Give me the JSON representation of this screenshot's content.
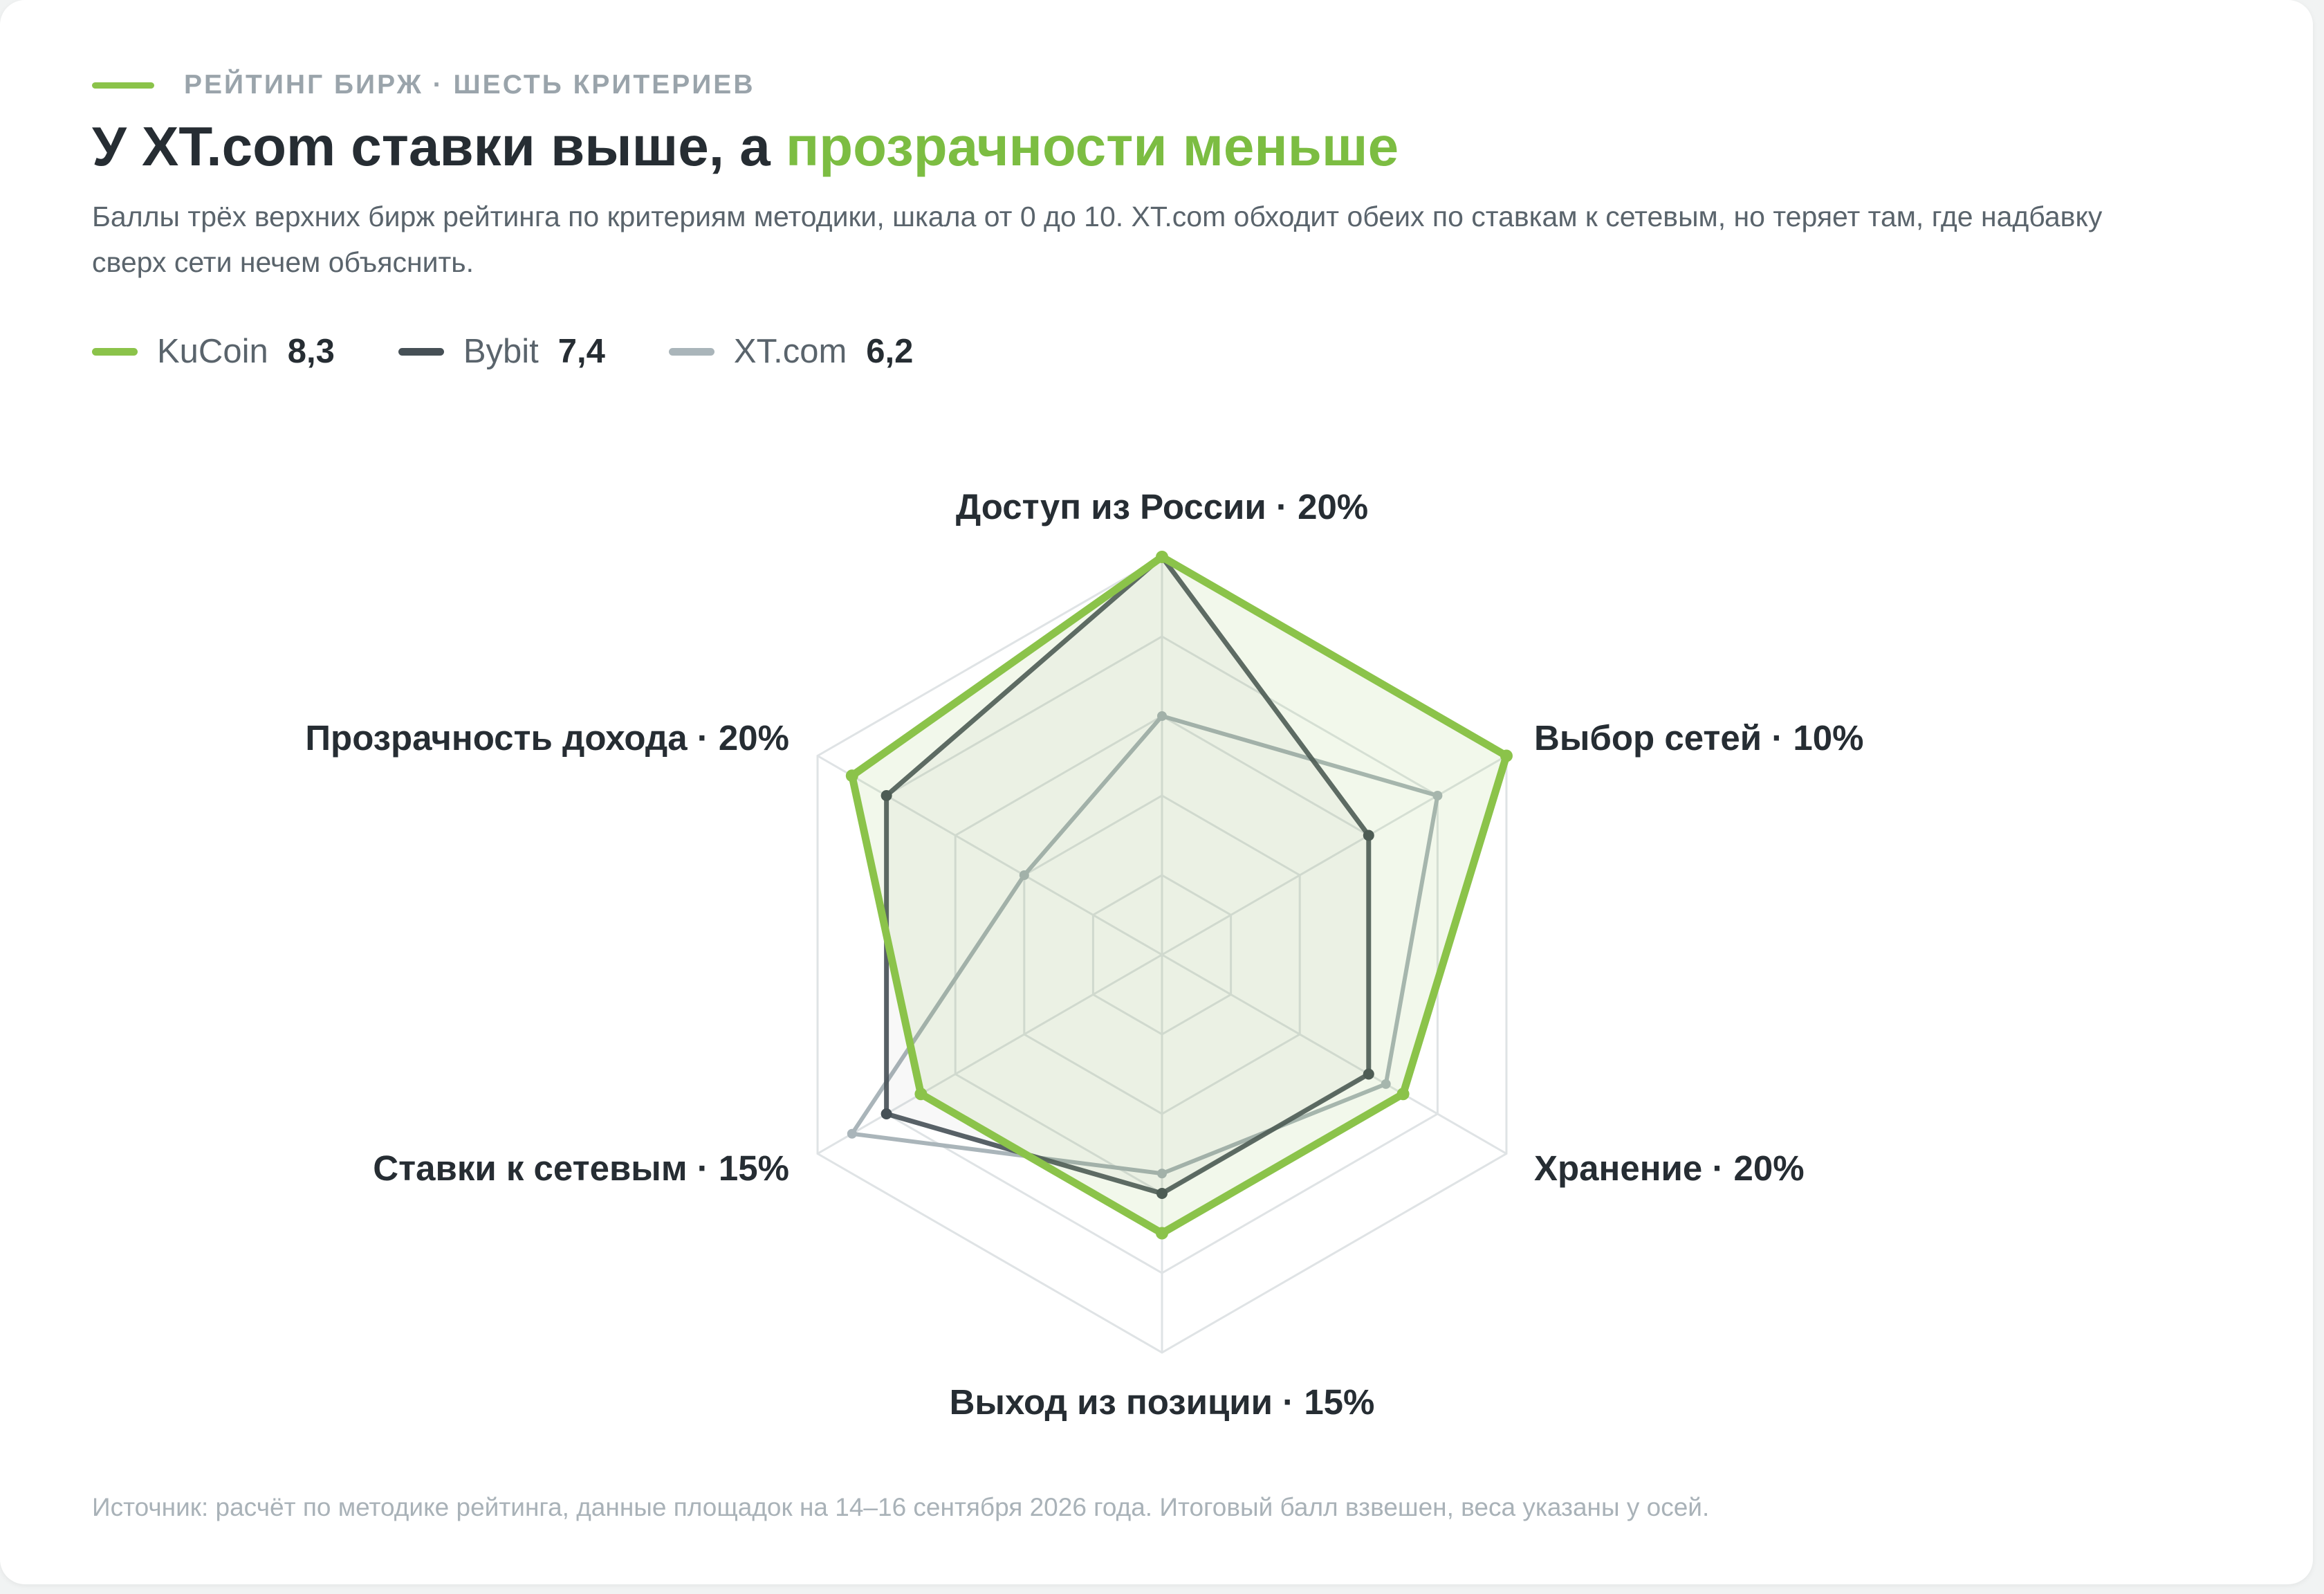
{
  "header": {
    "kicker": "РЕЙТИНГ БИРЖ · ШЕСТЬ КРИТЕРИЕВ",
    "title_main": "У XT.com ставки выше, а ",
    "title_accent": "прозрачности меньше",
    "subtitle": "Баллы трёх верхних бирж рейтинга по критериям методики, шкала от 0 до 10. XT.com обходит обеих по ставкам к сетевым, но теряет там, где надбавку сверх сети нечем объяснить."
  },
  "legend": [
    {
      "name": "KuCoin",
      "score": "8,3",
      "color": "#8bc34a"
    },
    {
      "name": "Bybit",
      "score": "7,4",
      "color": "#465056"
    },
    {
      "name": "XT.com",
      "score": "6,2",
      "color": "#aab5ba"
    }
  ],
  "chart_data": {
    "type": "radar",
    "scale": [
      0,
      10
    ],
    "grid_levels": 5,
    "axes": [
      "Доступ из России · 20%",
      "Выбор сетей · 10%",
      "Хранение · 20%",
      "Выход из позиции · 15%",
      "Ставки к сетевым · 15%",
      "Прозрачность дохода · 20%"
    ],
    "series": [
      {
        "name": "KuCoin",
        "values": [
          10,
          10,
          7,
          7,
          7,
          9
        ],
        "color": "#8bc34a"
      },
      {
        "name": "Bybit",
        "values": [
          10,
          6,
          6,
          6,
          8,
          8
        ],
        "color": "#465056"
      },
      {
        "name": "XT.com",
        "values": [
          6,
          8,
          6.5,
          5.5,
          9,
          4
        ],
        "color": "#aab5ba"
      }
    ]
  },
  "footer": {
    "source": "Источник: расчёт по методике рейтинга, данные площадок на 14–16 сентября 2026 года. Итоговый балл взвешен, веса указаны у осей."
  }
}
